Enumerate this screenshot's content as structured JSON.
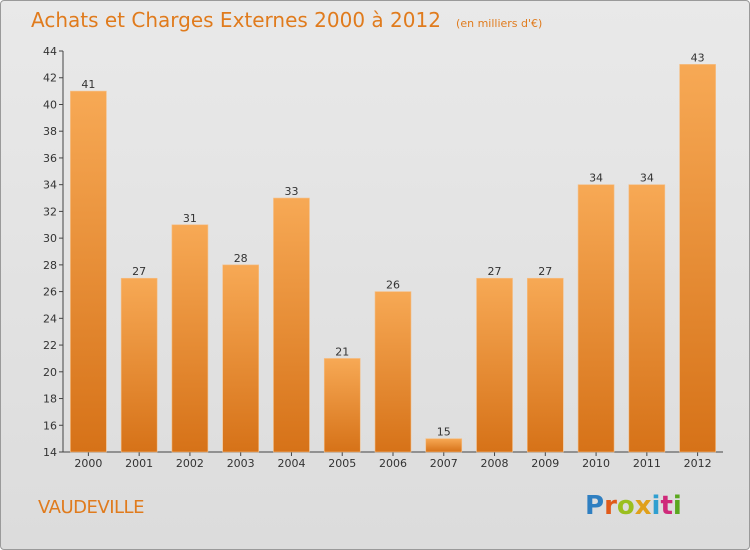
{
  "header": {
    "title": "Achats et Charges Externes 2000 à 2012",
    "subtitle": "(en milliers d'€)"
  },
  "footer": {
    "place": "VAUDEVILLE",
    "logo_text": "Proxiti"
  },
  "colors": {
    "accent": "#e07b1d",
    "bar_light": "#f6a552",
    "bar_dark": "#d9761c"
  },
  "chart_data": {
    "type": "bar",
    "title": "Achats et Charges Externes 2000 à 2012",
    "subtitle": "(en milliers d'€)",
    "categories": [
      "2000",
      "2001",
      "2002",
      "2003",
      "2004",
      "2005",
      "2006",
      "2007",
      "2008",
      "2009",
      "2010",
      "2011",
      "2012"
    ],
    "values": [
      41,
      27,
      31,
      28,
      33,
      21,
      26,
      15,
      27,
      27,
      34,
      34,
      43
    ],
    "ylim": [
      14,
      44
    ],
    "yticks": [
      14,
      16,
      18,
      20,
      22,
      24,
      26,
      28,
      30,
      32,
      34,
      36,
      38,
      40,
      42,
      44
    ],
    "grid": false,
    "data_labels": true
  }
}
